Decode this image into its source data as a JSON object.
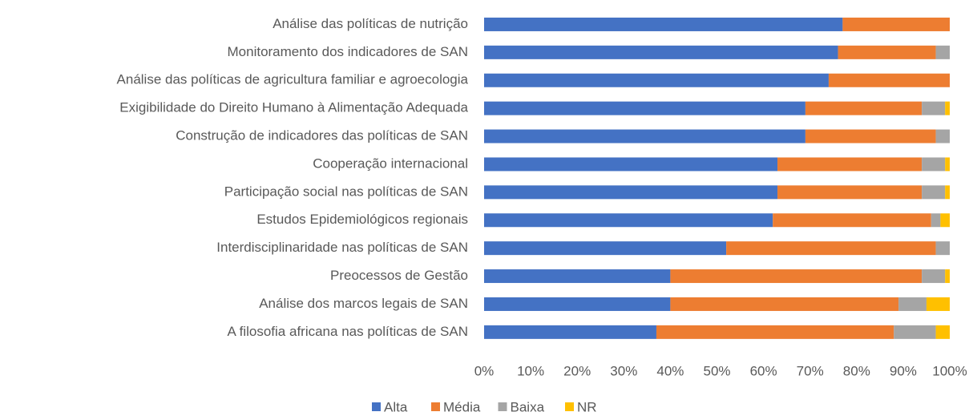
{
  "chart_data": {
    "type": "bar",
    "orientation": "horizontal",
    "stacked": true,
    "categories": [
      "Análise das políticas de nutrição",
      "Monitoramento dos indicadores de SAN",
      "Análise das políticas de agricultura familiar e agroecologia",
      "Exigibilidade do Direito Humano à Alimentação Adequada",
      "Construção de indicadores das políticas de SAN",
      "Cooperação internacional",
      "Participação social nas políticas de SAN",
      "Estudos Epidemiológicos regionais",
      "Interdisciplinaridade nas políticas de SAN",
      "Preocessos de Gestão",
      "Análise dos marcos legais de SAN",
      "A filosofia africana nas políticas de SAN"
    ],
    "series": [
      {
        "name": "Alta",
        "color": "#4472c4",
        "values": [
          77,
          76,
          74,
          69,
          69,
          63,
          63,
          62,
          52,
          40,
          40,
          37
        ]
      },
      {
        "name": "Média",
        "color": "#ed7d31",
        "values": [
          23,
          21,
          26,
          25,
          28,
          31,
          31,
          34,
          45,
          54,
          49,
          51
        ]
      },
      {
        "name": "Baixa",
        "color": "#a5a5a5",
        "values": [
          0,
          3,
          0,
          5,
          3,
          5,
          5,
          2,
          3,
          5,
          6,
          9
        ]
      },
      {
        "name": "NR",
        "color": "#ffc000",
        "values": [
          0,
          0,
          0,
          1,
          0,
          1,
          1,
          2,
          0,
          1,
          5,
          3
        ]
      }
    ],
    "xlim": [
      0,
      100
    ],
    "xticks": [
      {
        "value": 0,
        "label": "0%"
      },
      {
        "value": 10,
        "label": "10%"
      },
      {
        "value": 20,
        "label": "20%"
      },
      {
        "value": 30,
        "label": "30%"
      },
      {
        "value": 40,
        "label": "40%"
      },
      {
        "value": 50,
        "label": "50%"
      },
      {
        "value": 60,
        "label": "60%"
      },
      {
        "value": 70,
        "label": "70%"
      },
      {
        "value": 80,
        "label": "80%"
      },
      {
        "value": 90,
        "label": "90%"
      },
      {
        "value": 100,
        "label": "100%"
      }
    ],
    "grid": false,
    "legend": "bottom"
  }
}
